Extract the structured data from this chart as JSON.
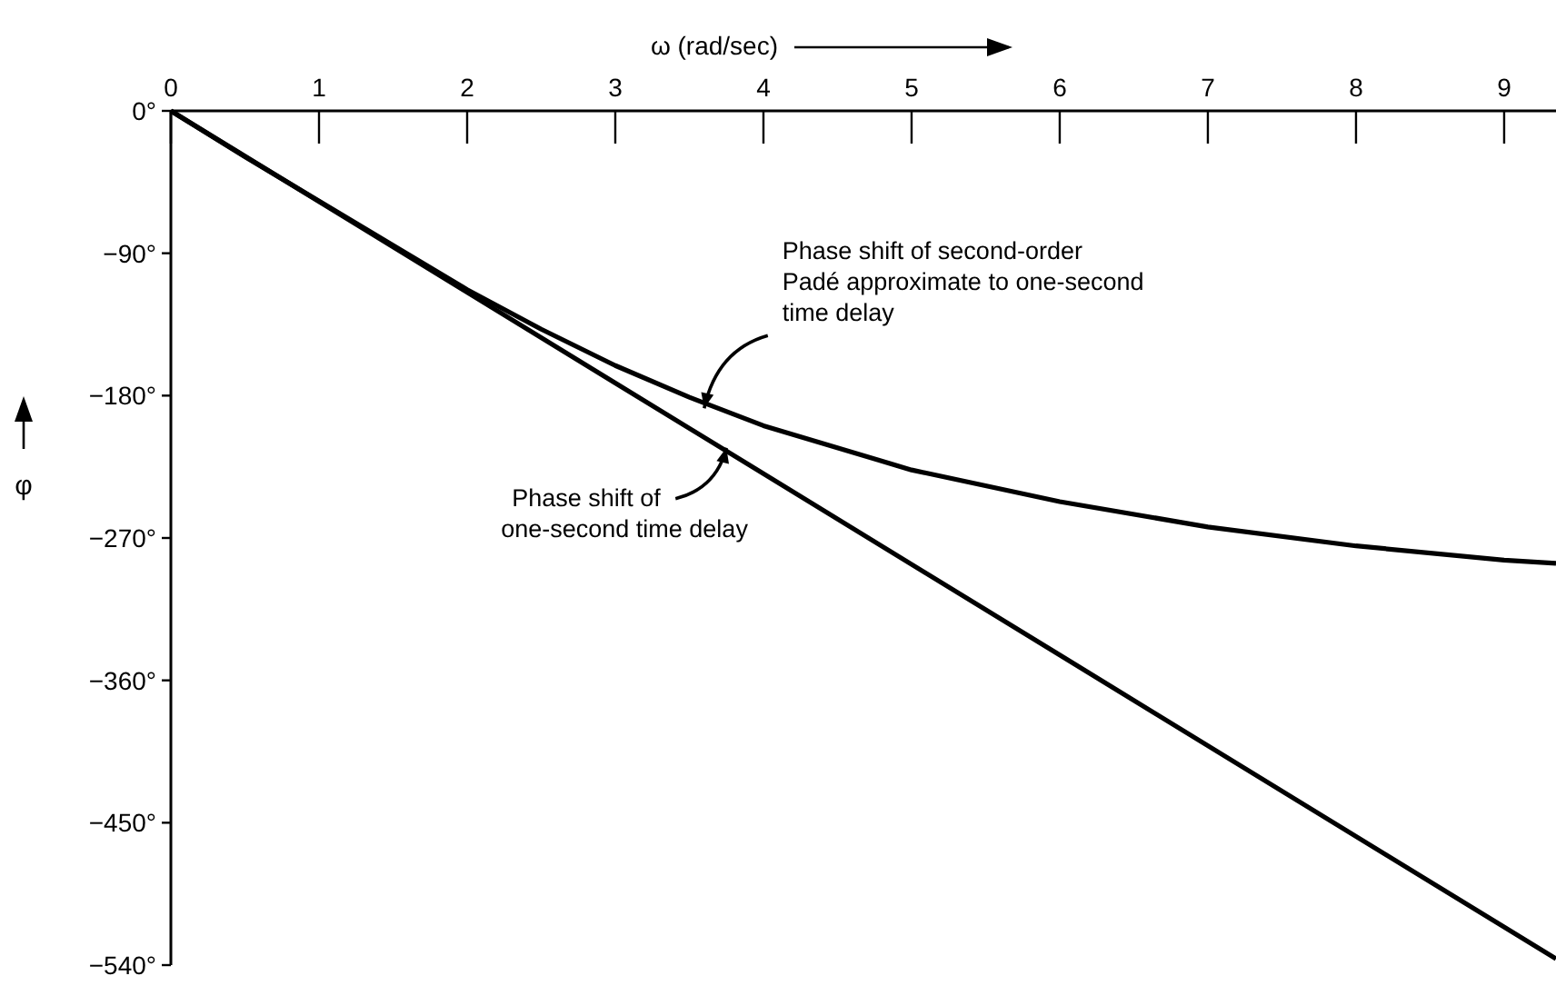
{
  "chart_data": {
    "type": "line",
    "xlabel": "ω (rad/sec)",
    "ylabel": "φ",
    "xlim": [
      0,
      9.35
    ],
    "ylim": [
      -540,
      0
    ],
    "xticks": [
      0,
      1,
      2,
      3,
      4,
      5,
      6,
      7,
      8,
      9
    ],
    "yticks": [
      {
        "value": 0,
        "label": "0°"
      },
      {
        "value": -90,
        "label": "−90°"
      },
      {
        "value": -180,
        "label": "−180°"
      },
      {
        "value": -270,
        "label": "−270°"
      },
      {
        "value": -360,
        "label": "−360°"
      },
      {
        "value": -450,
        "label": "−450°"
      },
      {
        "value": -540,
        "label": "−540°"
      }
    ],
    "series": [
      {
        "color": "#000000",
        "x": [
          0,
          0.5,
          1,
          1.5,
          2,
          2.5,
          3,
          3.5,
          4,
          5,
          6,
          7,
          8,
          9,
          9.35
        ],
        "values": [
          0,
          -29,
          -57,
          -85,
          -113,
          -138,
          -161,
          -181,
          -199,
          -227,
          -247,
          -263,
          -275,
          -284,
          -286
        ]
      },
      {
        "color": "#000000",
        "x": [
          0,
          3,
          6,
          9.35
        ],
        "values": [
          0,
          -172,
          -344,
          -536
        ]
      }
    ],
    "annotations": [
      {
        "text": "Phase shift of second-order\nPadé approximate to one-second\ntime delay",
        "x": 3.6,
        "y": -188
      },
      {
        "text": "Phase shift of\none-second time delay",
        "x": 3.75,
        "y": -213
      }
    ],
    "line_style": "solid",
    "marker": "none"
  }
}
